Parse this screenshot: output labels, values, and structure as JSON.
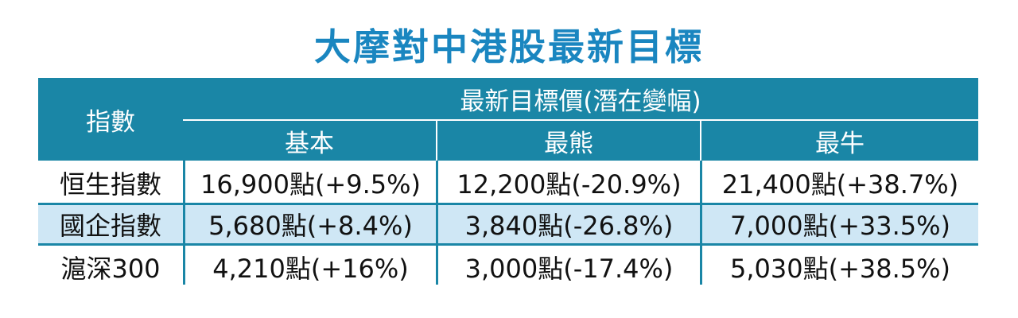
{
  "title": "大摩對中港股最新目標",
  "chart_data": {
    "type": "table",
    "title": "大摩對中港股最新目標",
    "header": {
      "index_label": "指數",
      "group_label": "最新目標價(潛在變幅)",
      "scenarios": [
        "基本",
        "最熊",
        "最牛"
      ]
    },
    "rows": [
      {
        "index": "恒生指數",
        "cells": [
          "16,900點(+9.5%)",
          "12,200點(-20.9%)",
          "21,400點(+38.7%)"
        ]
      },
      {
        "index": "國企指數",
        "cells": [
          "5,680點(+8.4%)",
          "3,840點(-26.8%)",
          "7,000點(+33.5%)"
        ]
      },
      {
        "index": "滬深300",
        "cells": [
          "4,210點(+16%)",
          "3,000點(-17.4%)",
          "5,030點(+38.5%)"
        ]
      }
    ],
    "values": [
      {
        "index": "恒生指數",
        "base": 16900,
        "base_pct": 9.5,
        "bear": 12200,
        "bear_pct": -20.9,
        "bull": 21400,
        "bull_pct": 38.7
      },
      {
        "index": "國企指數",
        "base": 5680,
        "base_pct": 8.4,
        "bear": 3840,
        "bear_pct": -26.8,
        "bull": 7000,
        "bull_pct": 33.5
      },
      {
        "index": "滬深300",
        "base": 4210,
        "base_pct": 16,
        "bear": 3000,
        "bear_pct": -17.4,
        "bull": 5030,
        "bull_pct": 38.5
      }
    ]
  },
  "colors": {
    "title": "#1a86c0",
    "header_bg": "#1a86a6",
    "stripe_bg": "#cfe7f5"
  }
}
